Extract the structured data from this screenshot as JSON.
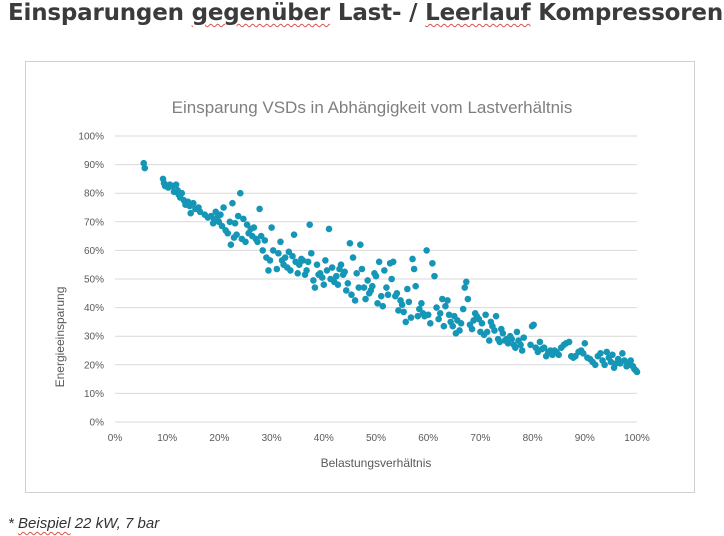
{
  "slide": {
    "title_part1": "Einsparungen ",
    "title_part2": "gegenüber",
    "title_part3": " Last- / ",
    "title_part4": "Leerlauf",
    "title_part5": " Kompressoren",
    "footnote_part1": "* ",
    "footnote_part2": "Beispiel",
    "footnote_part3": " 22 kW, 7 bar"
  },
  "colors": {
    "accent": "#1596b6",
    "grid": "#d9d9d9",
    "text": "#595959",
    "title": "#7f7f7f"
  },
  "chart_data": {
    "type": "scatter",
    "title": "Einsparung VSDs in Abhängigkeit vom Lastverhältnis",
    "xlabel": "Belastungsverhältnis",
    "ylabel": "Energieeinsparung",
    "xlim": [
      0,
      100
    ],
    "ylim": [
      0,
      100
    ],
    "grid": "horizontal",
    "legend": "none",
    "x_ticks": [
      "0%",
      "10%",
      "20%",
      "30%",
      "40%",
      "50%",
      "60%",
      "70%",
      "80%",
      "90%",
      "100%"
    ],
    "y_ticks": [
      "0%",
      "10%",
      "20%",
      "30%",
      "40%",
      "50%",
      "60%",
      "70%",
      "80%",
      "90%",
      "100%"
    ],
    "series": [
      {
        "name": "Einsparung",
        "points": [
          [
            5.5,
            90.5
          ],
          [
            5.7,
            88.8
          ],
          [
            9.2,
            85
          ],
          [
            9.4,
            83.5
          ],
          [
            9.6,
            82.5
          ],
          [
            10.2,
            82
          ],
          [
            10.5,
            83
          ],
          [
            11.0,
            82.5
          ],
          [
            11.3,
            80.5
          ],
          [
            11.7,
            83
          ],
          [
            12.0,
            81
          ],
          [
            12.2,
            79.5
          ],
          [
            12.5,
            78.5
          ],
          [
            12.8,
            80
          ],
          [
            13.2,
            77.5
          ],
          [
            13.5,
            76
          ],
          [
            14.0,
            77
          ],
          [
            14.3,
            75.5
          ],
          [
            14.5,
            73
          ],
          [
            15.0,
            76.5
          ],
          [
            15.4,
            74.5
          ],
          [
            16.0,
            75
          ],
          [
            16.3,
            73.5
          ],
          [
            17.2,
            72.5
          ],
          [
            17.8,
            71.5
          ],
          [
            18.4,
            72
          ],
          [
            18.8,
            69.5
          ],
          [
            19.0,
            70.5
          ],
          [
            19.3,
            73.5
          ],
          [
            19.6,
            71.5
          ],
          [
            19.9,
            70
          ],
          [
            20.2,
            72.5
          ],
          [
            20.5,
            68.5
          ],
          [
            20.8,
            75
          ],
          [
            21.2,
            67
          ],
          [
            21.6,
            66
          ],
          [
            22.0,
            70
          ],
          [
            22.2,
            62
          ],
          [
            22.5,
            76.5
          ],
          [
            22.8,
            64.5
          ],
          [
            23.0,
            69.5
          ],
          [
            23.3,
            65.5
          ],
          [
            23.6,
            72
          ],
          [
            24.0,
            80
          ],
          [
            24.3,
            64
          ],
          [
            24.6,
            71
          ],
          [
            25.0,
            63
          ],
          [
            25.3,
            69
          ],
          [
            25.6,
            66
          ],
          [
            26.0,
            67.5
          ],
          [
            26.3,
            65
          ],
          [
            26.6,
            68
          ],
          [
            27.0,
            64
          ],
          [
            27.3,
            63
          ],
          [
            27.7,
            74.5
          ],
          [
            28.0,
            65
          ],
          [
            28.3,
            60
          ],
          [
            28.7,
            63.5
          ],
          [
            29.0,
            57.5
          ],
          [
            29.4,
            53
          ],
          [
            29.7,
            56.5
          ],
          [
            30.0,
            68
          ],
          [
            30.3,
            60
          ],
          [
            31.0,
            53.5
          ],
          [
            31.3,
            59
          ],
          [
            31.7,
            63
          ],
          [
            32.0,
            56.5
          ],
          [
            32.3,
            55
          ],
          [
            32.6,
            57.5
          ],
          [
            33.0,
            54
          ],
          [
            33.3,
            59.5
          ],
          [
            33.6,
            53
          ],
          [
            34.0,
            58
          ],
          [
            34.3,
            65.5
          ],
          [
            34.6,
            56
          ],
          [
            35.0,
            52
          ],
          [
            35.3,
            55
          ],
          [
            35.7,
            57
          ],
          [
            36.0,
            56.5
          ],
          [
            36.4,
            51.5
          ],
          [
            36.7,
            53
          ],
          [
            37.0,
            56
          ],
          [
            37.3,
            69
          ],
          [
            37.6,
            59
          ],
          [
            38.0,
            49.5
          ],
          [
            38.3,
            47
          ],
          [
            38.7,
            55
          ],
          [
            39.0,
            51.5
          ],
          [
            39.3,
            52
          ],
          [
            39.7,
            50.5
          ],
          [
            40.0,
            48
          ],
          [
            40.3,
            56.5
          ],
          [
            40.6,
            53
          ],
          [
            41.0,
            67.5
          ],
          [
            41.3,
            50
          ],
          [
            41.6,
            54
          ],
          [
            42.0,
            49
          ],
          [
            42.4,
            51
          ],
          [
            42.7,
            48
          ],
          [
            43.0,
            53.5
          ],
          [
            43.3,
            55
          ],
          [
            43.7,
            51.5
          ],
          [
            44.0,
            52.5
          ],
          [
            44.3,
            46
          ],
          [
            44.6,
            48.5
          ],
          [
            45.0,
            62.5
          ],
          [
            45.3,
            44.5
          ],
          [
            45.6,
            57.5
          ],
          [
            46.0,
            42.5
          ],
          [
            46.3,
            52
          ],
          [
            46.7,
            47
          ],
          [
            47.0,
            62
          ],
          [
            47.3,
            53.5
          ],
          [
            47.7,
            47
          ],
          [
            48.0,
            43
          ],
          [
            48.4,
            49.5
          ],
          [
            48.7,
            45
          ],
          [
            49.0,
            46
          ],
          [
            49.3,
            47.5
          ],
          [
            49.7,
            52
          ],
          [
            50.0,
            51
          ],
          [
            50.3,
            41.5
          ],
          [
            50.6,
            56
          ],
          [
            51.0,
            44
          ],
          [
            51.3,
            40.5
          ],
          [
            51.6,
            53
          ],
          [
            52.0,
            47
          ],
          [
            52.3,
            44.5
          ],
          [
            52.7,
            55.5
          ],
          [
            53.0,
            50
          ],
          [
            53.3,
            56
          ],
          [
            53.7,
            44
          ],
          [
            54.0,
            45
          ],
          [
            54.3,
            39
          ],
          [
            54.7,
            42.5
          ],
          [
            55.0,
            41
          ],
          [
            55.3,
            38.5
          ],
          [
            55.7,
            35
          ],
          [
            56.0,
            46.5
          ],
          [
            56.3,
            42
          ],
          [
            56.7,
            36.5
          ],
          [
            57.0,
            57
          ],
          [
            57.3,
            53.5
          ],
          [
            57.6,
            47.5
          ],
          [
            58.0,
            37
          ],
          [
            58.3,
            39.5
          ],
          [
            58.7,
            41.5
          ],
          [
            59.0,
            38
          ],
          [
            59.3,
            37
          ],
          [
            59.7,
            60
          ],
          [
            60.0,
            37.5
          ],
          [
            60.4,
            34.5
          ],
          [
            60.8,
            55.5
          ],
          [
            61.2,
            51
          ],
          [
            61.6,
            40
          ],
          [
            62.0,
            36
          ],
          [
            62.3,
            38
          ],
          [
            62.7,
            43
          ],
          [
            63.0,
            33.5
          ],
          [
            63.3,
            40.5
          ],
          [
            63.7,
            42.5
          ],
          [
            64.0,
            37.5
          ],
          [
            64.3,
            35
          ],
          [
            64.7,
            33.5
          ],
          [
            65.0,
            37
          ],
          [
            65.3,
            31
          ],
          [
            65.6,
            35.5
          ],
          [
            66.0,
            32
          ],
          [
            66.3,
            34.5
          ],
          [
            66.7,
            39.5
          ],
          [
            67.0,
            47
          ],
          [
            67.3,
            49
          ],
          [
            67.6,
            43
          ],
          [
            68.0,
            34
          ],
          [
            68.4,
            32.5
          ],
          [
            68.7,
            35.5
          ],
          [
            69.0,
            38
          ],
          [
            69.3,
            37
          ],
          [
            69.7,
            36
          ],
          [
            70.0,
            31.5
          ],
          [
            70.3,
            34.5
          ],
          [
            70.7,
            30.5
          ],
          [
            71.0,
            37.5
          ],
          [
            71.3,
            31.5
          ],
          [
            71.7,
            28.5
          ],
          [
            72.0,
            35
          ],
          [
            72.3,
            33.5
          ],
          [
            72.7,
            32
          ],
          [
            73.0,
            37
          ],
          [
            73.4,
            29
          ],
          [
            73.7,
            28
          ],
          [
            74.0,
            32.5
          ],
          [
            74.3,
            31
          ],
          [
            74.7,
            28.5
          ],
          [
            75.0,
            29
          ],
          [
            75.3,
            27.5
          ],
          [
            75.7,
            30
          ],
          [
            76.0,
            29
          ],
          [
            76.4,
            27
          ],
          [
            76.7,
            26
          ],
          [
            77.0,
            31.5
          ],
          [
            77.3,
            28.5
          ],
          [
            77.7,
            27
          ],
          [
            78.0,
            25
          ],
          [
            78.3,
            29.5
          ],
          [
            79.6,
            27
          ],
          [
            79.9,
            33.5
          ],
          [
            80.2,
            34
          ],
          [
            80.6,
            26
          ],
          [
            81.0,
            24.5
          ],
          [
            81.4,
            28
          ],
          [
            81.8,
            25.5
          ],
          [
            82.2,
            26
          ],
          [
            82.6,
            23
          ],
          [
            83.0,
            24.5
          ],
          [
            83.4,
            25
          ],
          [
            83.8,
            23.5
          ],
          [
            84.2,
            25
          ],
          [
            84.6,
            24.5
          ],
          [
            85.0,
            23.5
          ],
          [
            85.5,
            26
          ],
          [
            86.0,
            27
          ],
          [
            86.4,
            27.5
          ],
          [
            87.0,
            28
          ],
          [
            87.4,
            23
          ],
          [
            87.8,
            22.5
          ],
          [
            88.2,
            23
          ],
          [
            88.8,
            24.5
          ],
          [
            89.3,
            25
          ],
          [
            89.7,
            24
          ],
          [
            90.0,
            27.5
          ],
          [
            90.5,
            22.5
          ],
          [
            91.0,
            22
          ],
          [
            91.5,
            21
          ],
          [
            92.0,
            20
          ],
          [
            92.5,
            23
          ],
          [
            93.0,
            24
          ],
          [
            93.4,
            21.5
          ],
          [
            93.8,
            20
          ],
          [
            94.2,
            24.5
          ],
          [
            94.6,
            22.5
          ],
          [
            95.0,
            21
          ],
          [
            95.3,
            23.5
          ],
          [
            95.6,
            19
          ],
          [
            96.0,
            20.5
          ],
          [
            96.4,
            22
          ],
          [
            96.8,
            20.5
          ],
          [
            97.2,
            24
          ],
          [
            97.6,
            21.5
          ],
          [
            98.0,
            19.5
          ],
          [
            98.4,
            20
          ],
          [
            98.8,
            21.5
          ],
          [
            99.2,
            19.5
          ],
          [
            99.5,
            18.5
          ],
          [
            99.8,
            18
          ],
          [
            100.0,
            17.5
          ]
        ]
      }
    ]
  }
}
